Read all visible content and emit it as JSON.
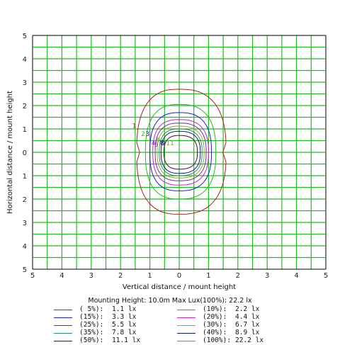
{
  "chart_data": {
    "type": "contour",
    "xlabel": "Vertical distance / mount height",
    "ylabel": "Horizontal distance / mount height",
    "xlim": [
      -5,
      5
    ],
    "ylim": [
      -5,
      5
    ],
    "x_ticks": [
      "5",
      "4",
      "3",
      "2",
      "1",
      "0",
      "1",
      "2",
      "3",
      "4",
      "5"
    ],
    "y_ticks": [
      "5",
      "4",
      "3",
      "2",
      "1",
      "0",
      "1",
      "2",
      "3",
      "4",
      "5"
    ],
    "grid": true,
    "grid_color": "#22bb22",
    "mounting_info": "Mounting Height: 10.0m  Max Lux(100%): 22.2 lx",
    "contours": [
      {
        "label": "1",
        "percent": "( 5%):",
        "value": "1.1 lx",
        "color": "#b02020",
        "rx_left": 1.45,
        "rx_right": 1.6,
        "ry_top": 2.7,
        "ry_bottom": 2.65
      },
      {
        "label": "2",
        "percent": "(10%):",
        "value": "2.2 lx",
        "color": "#22bb22",
        "rx_left": 1.15,
        "rx_right": 1.25,
        "ry_top": 2.05,
        "ry_bottom": 2.0
      },
      {
        "label": "3",
        "percent": "(15%):",
        "value": "3.3 lx",
        "color": "#2020c0",
        "rx_left": 1.0,
        "rx_right": 1.1,
        "ry_top": 1.7,
        "ry_bottom": 1.65
      },
      {
        "label": "4",
        "percent": "(20%):",
        "value": "4.4 lx",
        "color": "#cc22cc",
        "rx_left": 0.9,
        "rx_right": 1.0,
        "ry_top": 1.4,
        "ry_bottom": 1.4
      },
      {
        "label": "5",
        "percent": "(25%):",
        "value": "5.5 lx",
        "color": "#7030a0",
        "rx_left": 0.82,
        "rx_right": 0.92,
        "ry_top": 1.25,
        "ry_bottom": 1.22
      },
      {
        "label": "6",
        "percent": "(30%):",
        "value": "6.7 lx",
        "color": "#a0a040",
        "rx_left": 0.75,
        "rx_right": 0.85,
        "ry_top": 1.12,
        "ry_bottom": 1.1
      },
      {
        "label": "7",
        "percent": "(35%):",
        "value": "7.8 lx",
        "color": "#2a8a6a",
        "rx_left": 0.68,
        "rx_right": 0.78,
        "ry_top": 1.0,
        "ry_bottom": 1.0
      },
      {
        "label": "8",
        "percent": "(40%):",
        "value": "8.9 lx",
        "color": "#102070",
        "rx_left": 0.62,
        "rx_right": 0.72,
        "ry_top": 0.9,
        "ry_bottom": 0.9
      },
      {
        "label": "9",
        "percent": "(50%):",
        "value": "11.1 lx",
        "color": "#401040",
        "rx_left": 0.52,
        "rx_right": 0.62,
        "ry_top": 0.72,
        "ry_bottom": 0.72
      },
      {
        "label": "11",
        "percent": "(100%):",
        "value": "22.2 lx",
        "color": "#8a9a20",
        "rx_left": 0.0,
        "rx_right": 0.0,
        "ry_top": 0.0,
        "ry_bottom": 0.0
      }
    ]
  },
  "legend": [
    {
      "pct": "( 5%):",
      "val": "1.1 lx",
      "color": "#b02020"
    },
    {
      "pct": "(10%):",
      "val": "2.2 lx",
      "color": "#22bb22"
    },
    {
      "pct": "(15%):",
      "val": "3.3 lx",
      "color": "#2020c0"
    },
    {
      "pct": "(20%):",
      "val": "4.4 lx",
      "color": "#cc22cc"
    },
    {
      "pct": "(25%):",
      "val": "5.5 lx",
      "color": "#7030a0"
    },
    {
      "pct": "(30%):",
      "val": "6.7 lx",
      "color": "#a0a040"
    },
    {
      "pct": "(35%):",
      "val": "7.8 lx",
      "color": "#2a8a6a"
    },
    {
      "pct": "(40%):",
      "val": "8.9 lx",
      "color": "#102070"
    },
    {
      "pct": "(50%):",
      "val": "11.1 lx",
      "color": "#401040"
    },
    {
      "pct": "(100%):",
      "val": "22.2 lx",
      "color": "#8a9a20"
    }
  ]
}
